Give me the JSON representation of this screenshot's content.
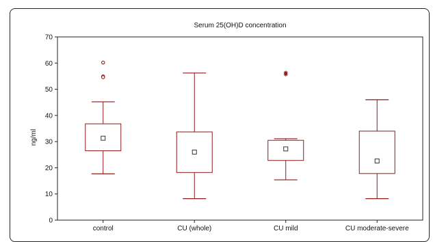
{
  "chart_data": {
    "type": "boxplot",
    "title": "Serum 25(OH)D concentration",
    "ylabel": "ng/ml",
    "xlabel": "",
    "ylim": [
      0,
      70
    ],
    "yticks": [
      0,
      10,
      20,
      30,
      40,
      50,
      60,
      70
    ],
    "grid": false,
    "color": "#8b1a1a",
    "categories": [
      "control",
      "CU (whole)",
      "CU mild",
      "CU moderate-severe"
    ],
    "boxes": [
      {
        "category": "control",
        "whisker_low": 17.7,
        "q1": 26.5,
        "mean": 31.3,
        "q3": 36.8,
        "whisker_high": 45.2,
        "outliers": [
          {
            "value": 60.2,
            "marker": "circle"
          },
          {
            "value": 54.9,
            "marker": "circle"
          },
          {
            "value": 54.6,
            "marker": "circle"
          }
        ]
      },
      {
        "category": "CU (whole)",
        "whisker_low": 8.2,
        "q1": 18.2,
        "mean": 26.0,
        "q3": 33.7,
        "whisker_high": 56.2,
        "outliers": []
      },
      {
        "category": "CU mild",
        "whisker_low": 15.4,
        "q1": 22.8,
        "mean": 27.2,
        "q3": 30.5,
        "whisker_high": 31.1,
        "outliers": [
          {
            "value": 56.3,
            "marker": "star"
          },
          {
            "value": 55.7,
            "marker": "star"
          }
        ]
      },
      {
        "category": "CU moderate-severe",
        "whisker_low": 8.2,
        "q1": 17.8,
        "mean": 22.6,
        "q3": 34.0,
        "whisker_high": 46.0,
        "outliers": []
      }
    ]
  }
}
